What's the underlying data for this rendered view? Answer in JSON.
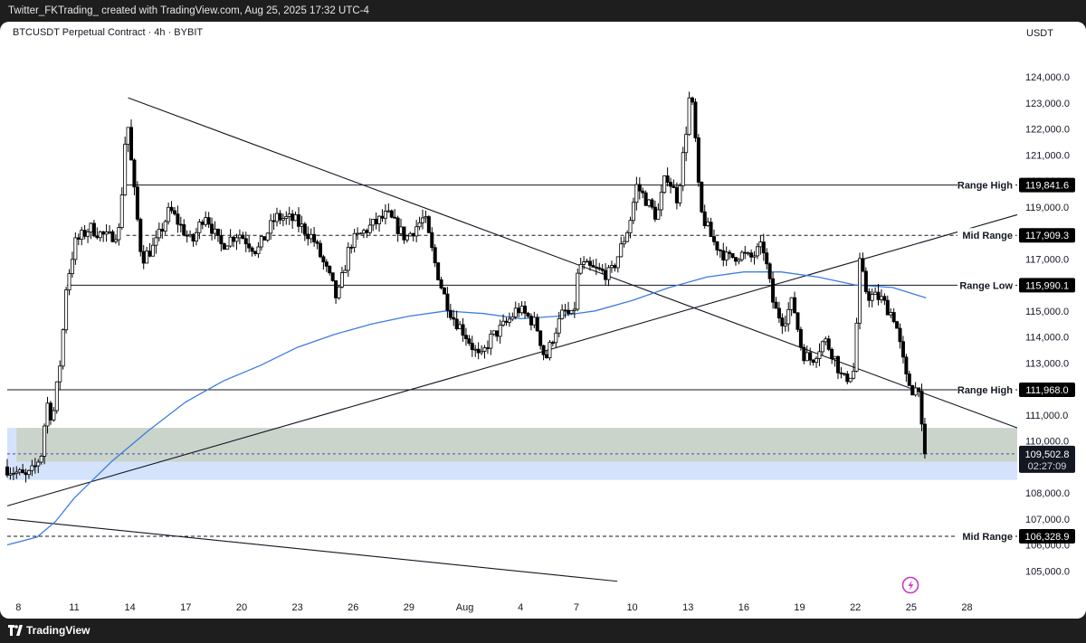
{
  "header": {
    "caption": "Twitter_FKTrading_ created with TradingView.com, Aug 25, 2025 17:32 UTC-4"
  },
  "chart_title": "BTCUSDT Perpetual Contract · 4h · BYBIT",
  "footer": {
    "brand": "TradingView"
  },
  "colors": {
    "ma": "#3b7de0",
    "zone_blue": "#cfe0fb",
    "zone_gray": "#c9d1c2",
    "candle": "#000000",
    "label_bg": "#000000",
    "label_fg": "#ffffff"
  },
  "icons": [
    "tradingview-logo-icon",
    "lightning-icon"
  ],
  "chart_data": {
    "type": "candlestick",
    "title": "BTCUSDT Perpetual Contract · 4h · BYBIT",
    "currency": "USDT",
    "y_range": [
      104000,
      125500
    ],
    "y_ticks": [
      124000,
      123000,
      122000,
      121000,
      120000,
      119000,
      118000,
      117000,
      116000,
      115000,
      114000,
      113000,
      112000,
      111000,
      110000,
      109000,
      108000,
      107000,
      106000,
      105000
    ],
    "y_tick_labels": [
      "124,000.0",
      "123,000.0",
      "122,000.0",
      "121,000.0",
      "120,000.0",
      "119,000.0",
      "118,000.0",
      "117,000.0",
      "116,000.0",
      "115,000.0",
      "114,000.0",
      "113,000.0",
      "112,000.0",
      "111,000.0",
      "110,000.0",
      "109,000.0",
      "108,000.0",
      "107,000.0",
      "106,000.0",
      "105,000.0"
    ],
    "x_ticks": [
      {
        "day": 8,
        "label": "8"
      },
      {
        "day": 11,
        "label": "11"
      },
      {
        "day": 14,
        "label": "14"
      },
      {
        "day": 17,
        "label": "17"
      },
      {
        "day": 20,
        "label": "20"
      },
      {
        "day": 23,
        "label": "23"
      },
      {
        "day": 26,
        "label": "26"
      },
      {
        "day": 29,
        "label": "29"
      },
      {
        "day": 32,
        "label": "Aug"
      },
      {
        "day": 35,
        "label": "4"
      },
      {
        "day": 38,
        "label": "7"
      },
      {
        "day": 41,
        "label": "10"
      },
      {
        "day": 44,
        "label": "13"
      },
      {
        "day": 47,
        "label": "16"
      },
      {
        "day": 50,
        "label": "19"
      },
      {
        "day": 53,
        "label": "22"
      },
      {
        "day": 56,
        "label": "25"
      },
      {
        "day": 59,
        "label": "28"
      }
    ],
    "x_range_days": [
      7.4,
      61.7
    ],
    "price_path": [
      [
        7.4,
        109000
      ],
      [
        8.0,
        108800
      ],
      [
        8.6,
        108600
      ],
      [
        9.0,
        108900
      ],
      [
        9.4,
        109500
      ],
      [
        9.7,
        111500
      ],
      [
        10.0,
        110800
      ],
      [
        10.5,
        113500
      ],
      [
        10.7,
        115800
      ],
      [
        11.2,
        117600
      ],
      [
        12.0,
        118200
      ],
      [
        13.0,
        117800
      ],
      [
        13.6,
        118100
      ],
      [
        14.0,
        122600
      ],
      [
        14.3,
        120200
      ],
      [
        14.8,
        117000
      ],
      [
        15.5,
        117500
      ],
      [
        16.3,
        118900
      ],
      [
        17.5,
        117600
      ],
      [
        18.2,
        118800
      ],
      [
        19.0,
        117500
      ],
      [
        20.0,
        118000
      ],
      [
        21.0,
        117300
      ],
      [
        22.0,
        118600
      ],
      [
        23.0,
        118500
      ],
      [
        24.0,
        117800
      ],
      [
        25.0,
        116100
      ],
      [
        25.3,
        115400
      ],
      [
        26.0,
        117600
      ],
      [
        27.0,
        118200
      ],
      [
        28.0,
        118700
      ],
      [
        29.0,
        117800
      ],
      [
        30.0,
        118600
      ],
      [
        30.5,
        117000
      ],
      [
        31.0,
        115700
      ],
      [
        31.5,
        114800
      ],
      [
        32.2,
        114100
      ],
      [
        33.0,
        113100
      ],
      [
        33.5,
        113900
      ],
      [
        34.5,
        114600
      ],
      [
        35.0,
        115100
      ],
      [
        36.0,
        114500
      ],
      [
        36.5,
        113100
      ],
      [
        37.0,
        114200
      ],
      [
        37.5,
        115000
      ],
      [
        38.0,
        114700
      ],
      [
        38.3,
        116800
      ],
      [
        39.0,
        116600
      ],
      [
        40.0,
        116400
      ],
      [
        40.5,
        117300
      ],
      [
        41.0,
        118300
      ],
      [
        41.4,
        119800
      ],
      [
        41.8,
        119400
      ],
      [
        42.5,
        118600
      ],
      [
        43.0,
        120300
      ],
      [
        43.6,
        119300
      ],
      [
        44.0,
        121500
      ],
      [
        44.3,
        123600
      ],
      [
        44.6,
        121300
      ],
      [
        44.8,
        118900
      ],
      [
        45.5,
        117700
      ],
      [
        46.3,
        117000
      ],
      [
        47.0,
        117200
      ],
      [
        47.5,
        117000
      ],
      [
        48.2,
        117500
      ],
      [
        48.8,
        115100
      ],
      [
        49.3,
        114600
      ],
      [
        49.8,
        115400
      ],
      [
        50.3,
        113400
      ],
      [
        50.8,
        113100
      ],
      [
        51.5,
        113900
      ],
      [
        52.0,
        113300
      ],
      [
        52.5,
        112300
      ],
      [
        53.1,
        112700
      ],
      [
        53.4,
        116800
      ],
      [
        53.8,
        115600
      ],
      [
        54.5,
        115500
      ],
      [
        55.3,
        114700
      ],
      [
        55.9,
        112400
      ],
      [
        56.3,
        111900
      ],
      [
        56.6,
        112200
      ],
      [
        56.8,
        109503
      ]
    ],
    "current_price": 109502.8,
    "current_price_label": "109,502.8",
    "countdown": "02:27:09",
    "levels": [
      {
        "name": "Range High",
        "price": 119841.6,
        "price_label": "119,841.6",
        "style": "solid",
        "start_day": 13.8
      },
      {
        "name": "Mid Range",
        "price": 117909.3,
        "price_label": "117,909.3",
        "style": "dashed",
        "start_day": 13.8
      },
      {
        "name": "Range Low",
        "price": 115990.1,
        "price_label": "115,990.1",
        "style": "solid",
        "start_day": 10.6
      },
      {
        "name": "Range High",
        "price": 111968.0,
        "price_label": "111,968.0",
        "style": "solid",
        "start_day": 7.4
      },
      {
        "name": "Mid Range",
        "price": 106328.9,
        "price_label": "106,328.9",
        "style": "dashed",
        "start_day": 7.4
      }
    ],
    "zones": [
      {
        "kind": "blue",
        "from": 108500,
        "to": 110500,
        "start_day": 7.4
      },
      {
        "kind": "gray",
        "from": 109200,
        "to": 110500,
        "start_day": 7.9
      }
    ],
    "trendlines": [
      {
        "from": [
          13.9,
          123200
        ],
        "to": [
          61.7,
          110500
        ]
      },
      {
        "from": [
          7.4,
          107500
        ],
        "to": [
          61.7,
          118700
        ]
      },
      {
        "from": [
          7.4,
          107000
        ],
        "to": [
          40.2,
          104600
        ]
      }
    ],
    "moving_average": [
      [
        7.4,
        106000
      ],
      [
        9.0,
        106300
      ],
      [
        10.0,
        106900
      ],
      [
        11.0,
        107800
      ],
      [
        12.0,
        108500
      ],
      [
        13.0,
        109200
      ],
      [
        15.0,
        110400
      ],
      [
        17.0,
        111500
      ],
      [
        19.0,
        112300
      ],
      [
        21.0,
        112900
      ],
      [
        23.0,
        113600
      ],
      [
        25.0,
        114100
      ],
      [
        27.0,
        114500
      ],
      [
        29.0,
        114800
      ],
      [
        31.0,
        115000
      ],
      [
        33.0,
        114900
      ],
      [
        35.0,
        114700
      ],
      [
        37.0,
        114800
      ],
      [
        39.0,
        115000
      ],
      [
        41.0,
        115400
      ],
      [
        43.0,
        115900
      ],
      [
        45.0,
        116300
      ],
      [
        47.0,
        116500
      ],
      [
        49.0,
        116500
      ],
      [
        51.0,
        116300
      ],
      [
        53.0,
        116000
      ],
      [
        55.0,
        115900
      ],
      [
        56.8,
        115500
      ]
    ]
  }
}
